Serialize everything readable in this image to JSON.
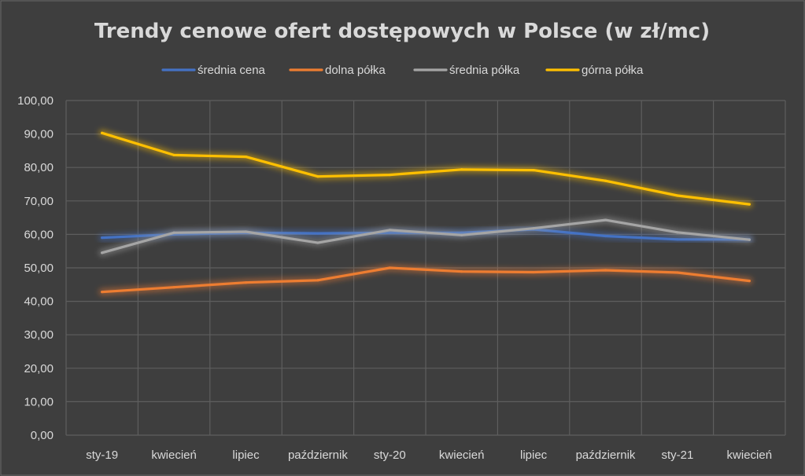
{
  "chart_data": {
    "type": "line",
    "title": "Trendy cenowe ofert dostępowych w Polsce (w zł/mc)",
    "xlabel": "",
    "ylabel": "",
    "categories": [
      "sty-19",
      "kwiecień",
      "lipiec",
      "październik",
      "sty-20",
      "kwiecień",
      "lipiec",
      "październik",
      "sty-21",
      "kwiecień"
    ],
    "y_ticks": [
      "0,00",
      "10,00",
      "20,00",
      "30,00",
      "40,00",
      "50,00",
      "60,00",
      "70,00",
      "80,00",
      "90,00",
      "100,00"
    ],
    "ylim": [
      0,
      100
    ],
    "grid": true,
    "legend_position": "top",
    "series": [
      {
        "name": "średnia cena",
        "color": "#4472c4",
        "values": [
          59.0,
          60.0,
          60.5,
          60.3,
          60.5,
          60.5,
          61.5,
          59.5,
          58.5,
          58.5
        ]
      },
      {
        "name": "dolna półka",
        "color": "#ed7d31",
        "values": [
          42.8,
          44.2,
          45.6,
          46.3,
          50.0,
          48.9,
          48.7,
          49.3,
          48.6,
          46.1
        ]
      },
      {
        "name": "średnia półka",
        "color": "#a5a5a5",
        "values": [
          54.5,
          60.5,
          60.8,
          57.5,
          61.3,
          59.8,
          61.8,
          64.3,
          60.6,
          58.4
        ]
      },
      {
        "name": "górna półka",
        "color": "#ffc000",
        "values": [
          90.3,
          83.7,
          83.2,
          77.3,
          77.8,
          79.4,
          79.2,
          76.0,
          71.6,
          69.0
        ]
      }
    ]
  }
}
